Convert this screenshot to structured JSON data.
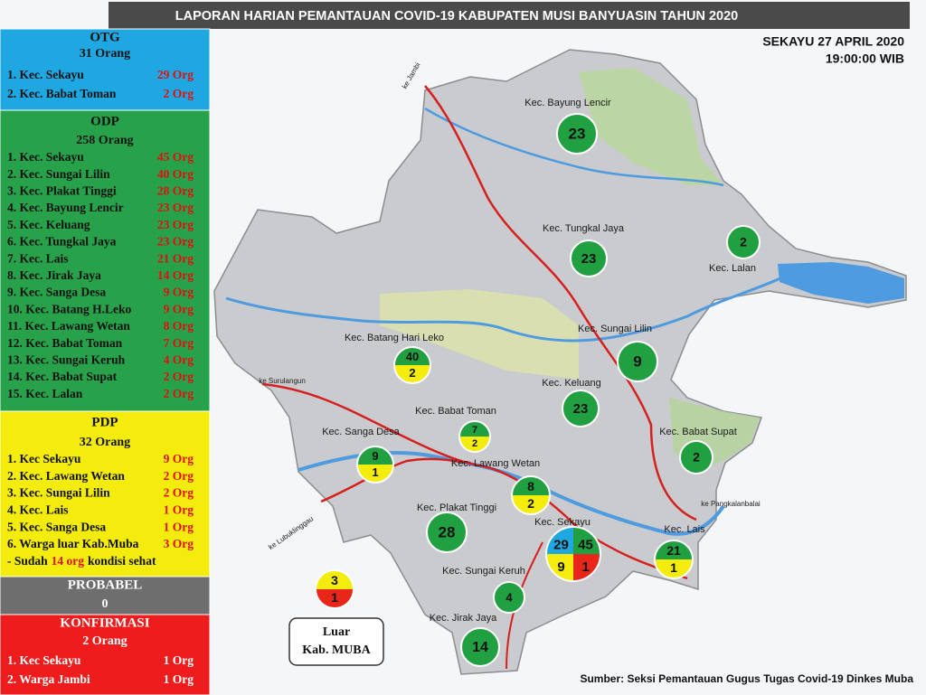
{
  "header": {
    "title": "LAPORAN   HARIAN  PEMANTAUAN  COVID-19  KABUPATEN  MUSI  BANYUASIN  TAHUN  2020",
    "date": "SEKAYU 27 APRIL 2020",
    "time": "19:00:00 WIB"
  },
  "panels": {
    "otg": {
      "title": "OTG",
      "total": "31 Orang",
      "items": [
        {
          "name": "1. Kec. Sekayu",
          "count": "29 Org"
        },
        {
          "name": "2. Kec. Babat Toman",
          "count": "2 Org"
        }
      ]
    },
    "odp": {
      "title": "ODP",
      "total": "258 Orang",
      "items": [
        {
          "name": "1. Kec. Sekayu",
          "count": "45 Org"
        },
        {
          "name": "2. Kec. Sungai Lilin",
          "count": "40 Org"
        },
        {
          "name": "3. Kec. Plakat Tinggi",
          "count": "28 Org"
        },
        {
          "name": "4. Kec. Bayung Lencir",
          "count": "23 Org"
        },
        {
          "name": "5. Kec. Keluang",
          "count": "23 Org"
        },
        {
          "name": "6. Kec. Tungkal Jaya",
          "count": "23 Org"
        },
        {
          "name": "7. Kec. Lais",
          "count": "21 Org"
        },
        {
          "name": "8. Kec. Jirak Jaya",
          "count": "14 Org"
        },
        {
          "name": "9. Kec. Sanga Desa",
          "count": "9 Org"
        },
        {
          "name": "10. Kec. Batang H.Leko",
          "count": "9 Org"
        },
        {
          "name": "11. Kec. Lawang Wetan",
          "count": "8 Org"
        },
        {
          "name": "12. Kec. Babat Toman",
          "count": "7 Org"
        },
        {
          "name": "13. Kec. Sungai Keruh",
          "count": "4 Org"
        },
        {
          "name": "14. Kec. Babat Supat",
          "count": "2 Org"
        },
        {
          "name": "15. Kec. Lalan",
          "count": "2 Org"
        }
      ]
    },
    "pdp": {
      "title": "PDP",
      "total": "32 Orang",
      "items": [
        {
          "name": "1. Kec Sekayu",
          "count": "9 Org"
        },
        {
          "name": "2. Kec. Lawang Wetan",
          "count": "2 Org"
        },
        {
          "name": "3. Kec. Sungai Lilin",
          "count": "2 Org"
        },
        {
          "name": "4. Kec. Lais",
          "count": "1 Org"
        },
        {
          "name": "5. Kec. Sanga Desa",
          "count": "1 Org"
        },
        {
          "name": "6. Warga luar Kab.Muba",
          "count": "3 Org"
        }
      ],
      "note": {
        "prefix": "- Sudah",
        "highlight": "14 org",
        "suffix": "kondisi sehat"
      }
    },
    "probabel": {
      "title": "PROBABEL",
      "total": "0",
      "items": []
    },
    "konfirmasi": {
      "title": "KONFIRMASI",
      "total": "2 Orang",
      "items": [
        {
          "name": "1. Kec Sekayu",
          "count": "1 Org"
        },
        {
          "name": "2. Warga Jambi",
          "count": "1 Org"
        }
      ]
    }
  },
  "map": {
    "districts": [
      "Kec. Bayung Lencir",
      "Kec. Tungkal Jaya",
      "Kec. Lalan",
      "Kec. Sungai Lilin",
      "Kec. Batang Hari Leko",
      "Kec. Keluang",
      "Kec. Babat Toman",
      "Kec. Babat Supat",
      "Kec. Sanga Desa",
      "Kec. Lawang Wetan",
      "Kec. Plakat Tinggi",
      "Kec. Sekayu",
      "Kec. Lais",
      "Kec. Sungai Keruh",
      "Kec. Jirak Jaya"
    ],
    "roads": [
      "ke Jambi",
      "ke Surulangun",
      "ke Lubuklinggau",
      "ke Pangkalanbalai"
    ],
    "bubbles": [
      {
        "parts": [
          "23"
        ]
      },
      {
        "parts": [
          "23"
        ]
      },
      {
        "parts": [
          "2"
        ]
      },
      {
        "parts": [
          "40",
          "2"
        ]
      },
      {
        "parts": [
          "9"
        ]
      },
      {
        "parts": [
          "23"
        ]
      },
      {
        "parts": [
          "7",
          "2"
        ]
      },
      {
        "parts": [
          "2"
        ]
      },
      {
        "parts": [
          "9",
          "1"
        ]
      },
      {
        "parts": [
          "8",
          "2"
        ]
      },
      {
        "parts": [
          "28"
        ]
      },
      {
        "parts": [
          "29",
          "45",
          "9",
          "1"
        ]
      },
      {
        "parts": [
          "21",
          "1"
        ]
      },
      {
        "parts": [
          "4"
        ]
      },
      {
        "parts": [
          "14"
        ]
      }
    ],
    "outside": {
      "parts": [
        "3",
        "1"
      ],
      "label": [
        "Luar",
        "Kab. MUBA"
      ]
    }
  },
  "source": "Sumber: Seksi Pemantauan Gugus Tugas Covid-19 Dinkes Muba"
}
